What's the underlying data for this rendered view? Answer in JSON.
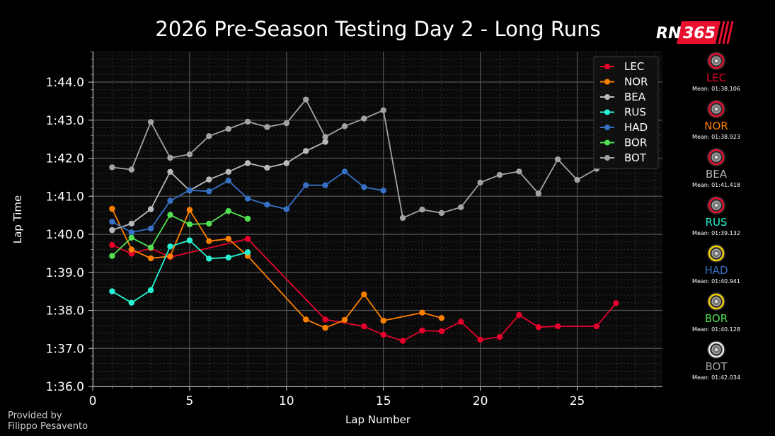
{
  "chart_data": {
    "type": "line",
    "title": "2026 Pre-Season Testing Day 2 - Long Runs",
    "xlabel": "Lap Number",
    "ylabel": "Lap Time",
    "xlim": [
      0,
      29.4
    ],
    "ylim": [
      96,
      104.8
    ],
    "x_ticks": [
      0,
      5,
      10,
      15,
      20,
      25
    ],
    "y_ticks": [
      {
        "v": 96,
        "label": "1:36.0"
      },
      {
        "v": 97,
        "label": "1:37.0"
      },
      {
        "v": 98,
        "label": "1:38.0"
      },
      {
        "v": 99,
        "label": "1:39.0"
      },
      {
        "v": 100,
        "label": "1:40.0"
      },
      {
        "v": 101,
        "label": "1:41.0"
      },
      {
        "v": 102,
        "label": "1:42.0"
      },
      {
        "v": 103,
        "label": "1:43.0"
      },
      {
        "v": 104,
        "label": "1:44.0"
      }
    ],
    "grid": true,
    "legend_position": "top-right",
    "series": [
      {
        "name": "LEC",
        "color": "#e8002d",
        "x": [
          1,
          2,
          3,
          4,
          8,
          12,
          14,
          15,
          16,
          17,
          18,
          19,
          20,
          21,
          22,
          23,
          24,
          26,
          27
        ],
        "y": [
          99.72,
          99.49,
          99.63,
          99.4,
          99.88,
          97.76,
          97.58,
          97.36,
          97.2,
          97.47,
          97.45,
          97.7,
          97.23,
          97.3,
          97.88,
          97.56,
          97.58,
          97.58,
          98.19
        ]
      },
      {
        "name": "NOR",
        "color": "#ff8000",
        "x": [
          1,
          2,
          3,
          4,
          5,
          6,
          7,
          8,
          11,
          12,
          13,
          14,
          15,
          17,
          18
        ],
        "y": [
          100.67,
          99.6,
          99.37,
          99.42,
          100.64,
          99.82,
          99.88,
          99.43,
          97.76,
          97.54,
          97.75,
          98.42,
          97.73,
          97.94,
          97.8
        ]
      },
      {
        "name": "BEA",
        "color": "#b6babd",
        "x": [
          1,
          2,
          3,
          4,
          5,
          6,
          7,
          8,
          9,
          10,
          11,
          12
        ],
        "y": [
          100.11,
          100.28,
          100.66,
          101.64,
          101.15,
          101.44,
          101.64,
          101.87,
          101.75,
          101.87,
          102.19,
          102.43
        ]
      },
      {
        "name": "RUS",
        "color": "#27f4d2",
        "x": [
          1,
          2,
          3,
          4,
          5,
          6,
          7,
          8
        ],
        "y": [
          98.5,
          98.2,
          98.53,
          99.68,
          99.84,
          99.36,
          99.39,
          99.53
        ]
      },
      {
        "name": "HAD",
        "color": "#3671c6",
        "x": [
          1,
          2,
          3,
          4,
          5,
          6,
          7,
          8,
          9,
          10,
          11,
          12,
          13,
          14,
          15
        ],
        "y": [
          100.33,
          100.05,
          100.15,
          100.88,
          101.16,
          101.13,
          101.41,
          100.94,
          100.78,
          100.66,
          101.29,
          101.29,
          101.65,
          101.24,
          101.15
        ]
      },
      {
        "name": "BOR",
        "color": "#52e252",
        "x": [
          1,
          2,
          3,
          4,
          5,
          6,
          7,
          8
        ],
        "y": [
          99.43,
          99.91,
          99.65,
          100.51,
          100.26,
          100.28,
          100.61,
          100.41
        ]
      },
      {
        "name": "BOT",
        "color": "#a3a3a3",
        "x": [
          1,
          2,
          3,
          4,
          5,
          6,
          7,
          8,
          9,
          10,
          11,
          12,
          13,
          14,
          15,
          16,
          17,
          18,
          19,
          20,
          21,
          22,
          23,
          24,
          25,
          26
        ],
        "y": [
          101.76,
          101.7,
          102.95,
          102.01,
          102.1,
          102.58,
          102.77,
          102.96,
          102.82,
          102.92,
          103.54,
          102.56,
          102.84,
          103.04,
          103.26,
          100.43,
          100.65,
          100.56,
          100.71,
          101.36,
          101.56,
          101.65,
          101.07,
          101.97,
          101.43,
          101.72
        ]
      }
    ]
  },
  "branding": {
    "logo_left": "RN",
    "logo_right": "365",
    "logo_color": "#e8102e"
  },
  "credit": {
    "line1": "Provided by",
    "line2": "Filippo Pesavento"
  },
  "drivers": [
    {
      "code": "LEC",
      "color": "#e8002d",
      "mean": "Mean: 01:38.106",
      "tyre_color": "#e8102e"
    },
    {
      "code": "NOR",
      "color": "#ff8000",
      "mean": "Mean: 01:38.923",
      "tyre_color": "#e8102e"
    },
    {
      "code": "BEA",
      "color": "#b6babd",
      "mean": "Mean: 01:41.418",
      "tyre_color": "#e8102e"
    },
    {
      "code": "RUS",
      "color": "#27f4d2",
      "mean": "Mean: 01:39.132",
      "tyre_color": "#e8102e"
    },
    {
      "code": "HAD",
      "color": "#3671c6",
      "mean": "Mean: 01:40.941",
      "tyre_color": "#f5d20a"
    },
    {
      "code": "BOR",
      "color": "#52e252",
      "mean": "Mean: 01:40.128",
      "tyre_color": "#f5d20a"
    },
    {
      "code": "BOT",
      "color": "#a3a3a3",
      "mean": "Mean: 01:42.034",
      "tyre_color": "#f0f0f0"
    }
  ]
}
